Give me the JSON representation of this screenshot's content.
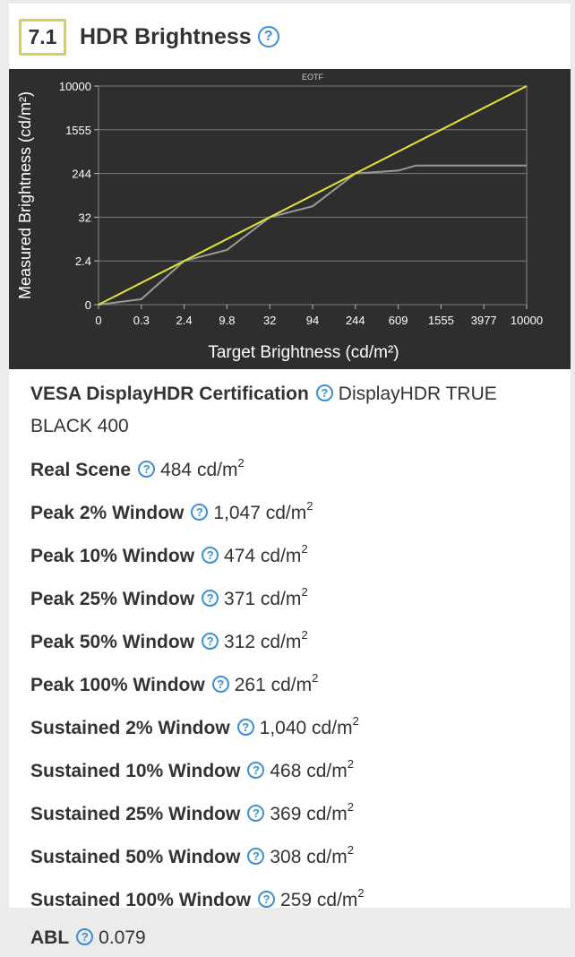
{
  "header": {
    "score": "7.1",
    "title": "HDR Brightness",
    "help_icon": "question-circle-icon"
  },
  "chart_data": {
    "type": "line",
    "title": "EOTF",
    "xlabel": "Target Brightness (cd/m²)",
    "ylabel": "Measured Brightness (cd/m²)",
    "x_ticks": [
      "0",
      "0.3",
      "2.4",
      "9.8",
      "32",
      "94",
      "244",
      "609",
      "1555",
      "3977",
      "10000"
    ],
    "y_ticks": [
      "0",
      "2.4",
      "32",
      "244",
      "1555",
      "10000"
    ],
    "grid": true,
    "series": [
      {
        "color": "#e3e33b",
        "points": [
          [
            0,
            0
          ],
          [
            10000,
            10000
          ]
        ]
      },
      {
        "color": "#9a9a9a",
        "points": [
          [
            0,
            0
          ],
          [
            0.3,
            0.3
          ],
          [
            2.4,
            2.4
          ],
          [
            9.8,
            9.8
          ],
          [
            32,
            32
          ],
          [
            94,
            85
          ],
          [
            244,
            244
          ],
          [
            609,
            330
          ],
          [
            1000,
            484
          ],
          [
            1555,
            484
          ],
          [
            3977,
            484
          ],
          [
            10000,
            484
          ]
        ]
      }
    ]
  },
  "rows": [
    {
      "label": "VESA DisplayHDR Certification",
      "value": "DisplayHDR TRUE BLACK 400",
      "unit": ""
    },
    {
      "label": "Real Scene",
      "value": "484 cd/m",
      "unit": "2"
    },
    {
      "label": "Peak 2% Window",
      "value": "1,047 cd/m",
      "unit": "2"
    },
    {
      "label": "Peak 10% Window",
      "value": "474 cd/m",
      "unit": "2"
    },
    {
      "label": "Peak 25% Window",
      "value": "371 cd/m",
      "unit": "2"
    },
    {
      "label": "Peak 50% Window",
      "value": "312 cd/m",
      "unit": "2"
    },
    {
      "label": "Peak 100% Window",
      "value": "261 cd/m",
      "unit": "2"
    },
    {
      "label": "Sustained 2% Window",
      "value": "1,040 cd/m",
      "unit": "2"
    },
    {
      "label": "Sustained 10% Window",
      "value": "468 cd/m",
      "unit": "2"
    },
    {
      "label": "Sustained 25% Window",
      "value": "369 cd/m",
      "unit": "2"
    },
    {
      "label": "Sustained 50% Window",
      "value": "308 cd/m",
      "unit": "2"
    },
    {
      "label": "Sustained 100% Window",
      "value": "259 cd/m",
      "unit": "2"
    },
    {
      "label": "ABL",
      "value": "0.079",
      "unit": ""
    }
  ],
  "colors": {
    "accent": "#3b8ed8",
    "score_border": "#d8cf55",
    "chart_bg": "#2e2e2e",
    "line_yellow": "#e3e33b"
  }
}
